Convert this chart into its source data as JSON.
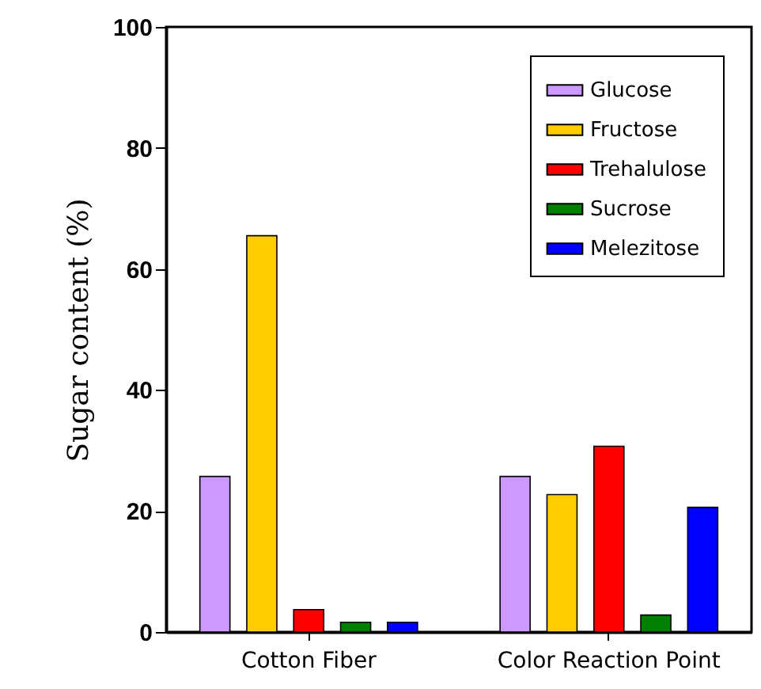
{
  "chart_data": {
    "type": "bar",
    "ylabel": "Sugar content (%)",
    "categories": [
      "Cotton Fiber",
      "Color Reaction Point"
    ],
    "series": [
      {
        "name": "Glucose",
        "color": "#cc99ff",
        "values": [
          25.7,
          25.7
        ]
      },
      {
        "name": "Fructose",
        "color": "#ffcc00",
        "values": [
          65.5,
          22.7
        ]
      },
      {
        "name": "Trehalulose",
        "color": "#ff0000",
        "values": [
          3.7,
          30.7
        ]
      },
      {
        "name": "Sucrose",
        "color": "#008000",
        "values": [
          1.6,
          2.8
        ]
      },
      {
        "name": "Melezitose",
        "color": "#0000ff",
        "values": [
          1.6,
          20.6
        ]
      }
    ],
    "ylim": [
      0,
      100
    ],
    "yticks": [
      0,
      20,
      40,
      60,
      80,
      100
    ],
    "grid": false,
    "legend": "top right"
  }
}
